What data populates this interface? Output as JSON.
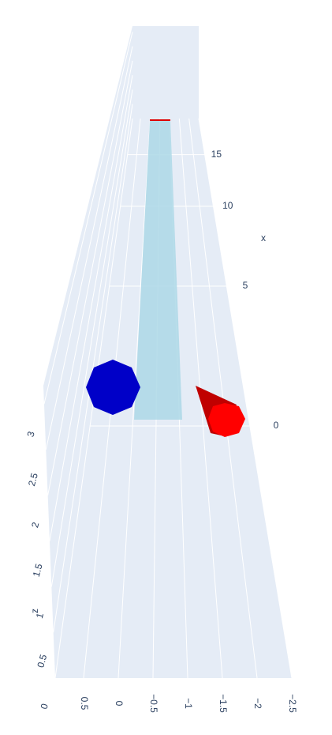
{
  "chart_data": {
    "type": "scatter3d",
    "x_title": "x",
    "z_title": "z",
    "xticks": [
      0,
      5,
      10,
      15
    ],
    "yticks": [
      0.5,
      0,
      {
        "value": -0.5,
        "label": "−0.5"
      },
      {
        "value": -1,
        "label": "−1"
      },
      {
        "value": -1.5,
        "label": "−1.5"
      },
      {
        "value": -2,
        "label": "−2"
      },
      {
        "value": -2.5,
        "label": "−2.5"
      }
    ],
    "zticks": [
      0,
      0.5,
      1,
      1.5,
      2,
      2.5,
      3
    ],
    "grid": true
  }
}
